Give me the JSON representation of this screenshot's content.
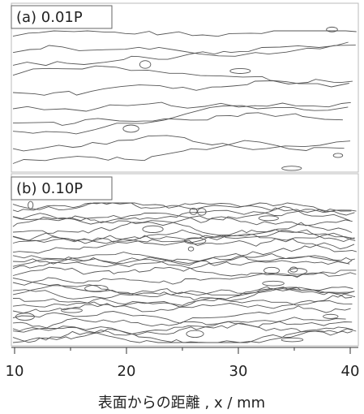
{
  "panels": [
    {
      "label": "(a) 0.01P"
    },
    {
      "label": "(b) 0.10P"
    }
  ],
  "x_axis": {
    "label": "表面からの距離 , x / mm",
    "xlim": [
      10,
      40
    ],
    "xticks": [
      10,
      20,
      30,
      40
    ],
    "minor_xticks": [
      15,
      25,
      35
    ]
  }
}
